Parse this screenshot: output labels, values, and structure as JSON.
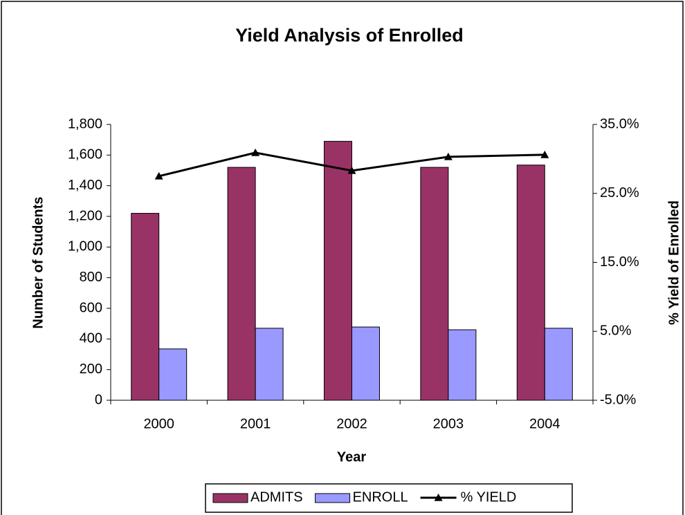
{
  "chart_data": {
    "type": "bar",
    "title": "Yield Analysis of Enrolled",
    "x_label": "Year",
    "y_label": "Number of Students",
    "y2_label": "% Yield of Enrolled",
    "categories": [
      "2000",
      "2001",
      "2002",
      "2003",
      "2004"
    ],
    "series": [
      {
        "name": "ADMITS",
        "type": "bar",
        "color": "#993366",
        "values": [
          1220,
          1520,
          1690,
          1520,
          1535
        ]
      },
      {
        "name": "ENROLL",
        "type": "bar",
        "color": "#9999ff",
        "values": [
          335,
          470,
          478,
          460,
          470
        ]
      },
      {
        "name": "% YIELD",
        "type": "line",
        "axis": "y2",
        "color": "#000000",
        "values": [
          27.5,
          30.9,
          28.3,
          30.3,
          30.6
        ]
      }
    ],
    "ylim": [
      0,
      1800
    ],
    "yticks": [
      0,
      200,
      400,
      600,
      800,
      {
        "value": 1000,
        "label": "1,000"
      },
      {
        "value": 1200,
        "label": "1,200"
      },
      {
        "value": 1400,
        "label": "1,400"
      },
      {
        "value": 1600,
        "label": "1,600"
      },
      {
        "value": 1800,
        "label": "1,800"
      }
    ],
    "y2lim": [
      -5,
      35
    ],
    "y2ticks": [
      {
        "value": -5,
        "label": "-5.0%"
      },
      {
        "value": 5,
        "label": "5.0%"
      },
      {
        "value": 15,
        "label": "15.0%"
      },
      {
        "value": 25,
        "label": "25.0%"
      },
      {
        "value": 35,
        "label": "35.0%"
      }
    ],
    "legend": "bottom"
  }
}
